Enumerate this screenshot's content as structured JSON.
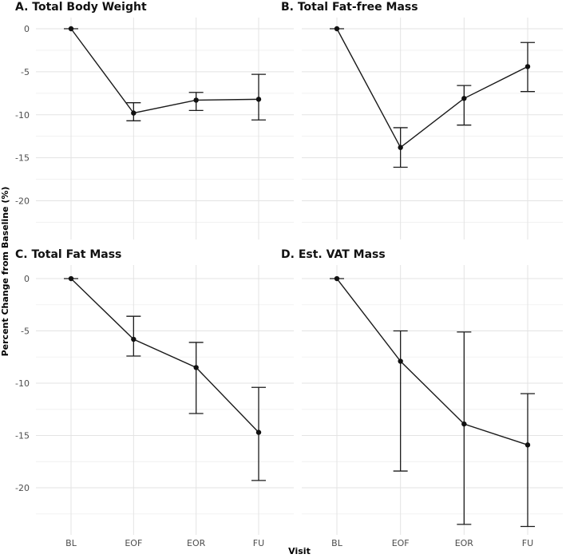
{
  "chart_data": {
    "type": "line",
    "ylabel": "Percent Change from Baseline (%)",
    "xlabel": "Visit",
    "categories": [
      "BL",
      "EOF",
      "EOR",
      "FU"
    ],
    "ylim": [
      -24.5,
      1.3
    ],
    "yticks": [
      0,
      -5,
      -10,
      -15,
      -20
    ],
    "yticks_labels": [
      "0",
      "-5",
      "-10",
      "-15",
      "-20"
    ],
    "panels": [
      {
        "title": "A. Total Body Weight",
        "values": [
          0,
          -9.8,
          -8.3,
          -8.2
        ],
        "lower": [
          0,
          -10.7,
          -9.5,
          -10.6
        ],
        "upper": [
          0,
          -8.6,
          -7.4,
          -5.3
        ]
      },
      {
        "title": "B. Total Fat-free Mass",
        "values": [
          0,
          -13.8,
          -8.1,
          -4.4
        ],
        "lower": [
          0,
          -16.1,
          -11.2,
          -7.3
        ],
        "upper": [
          0,
          -11.5,
          -6.6,
          -1.6
        ]
      },
      {
        "title": "C. Total Fat Mass",
        "values": [
          0,
          -5.8,
          -8.5,
          -14.7
        ],
        "lower": [
          0,
          -7.4,
          -12.9,
          -19.3
        ],
        "upper": [
          0,
          -3.6,
          -6.1,
          -10.4
        ]
      },
      {
        "title": "D. Est. VAT Mass",
        "values": [
          0,
          -7.9,
          -13.9,
          -15.9
        ],
        "lower": [
          0,
          -18.4,
          -23.5,
          -23.7
        ],
        "upper": [
          0,
          -5.0,
          -5.1,
          -11.0
        ]
      }
    ]
  }
}
